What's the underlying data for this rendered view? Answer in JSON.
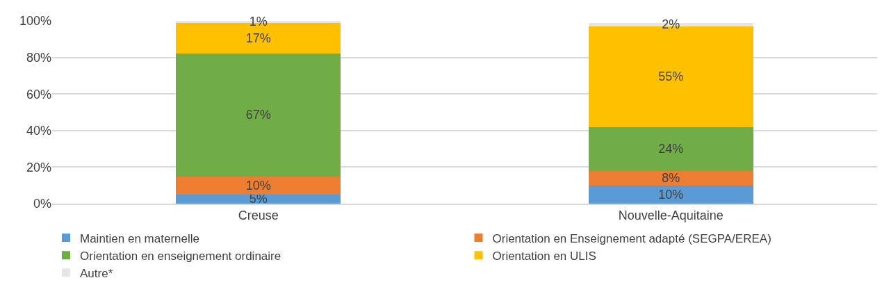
{
  "chart_data": {
    "type": "bar",
    "stacked": true,
    "categories": [
      "Creuse",
      "Nouvelle-Aquitaine"
    ],
    "series": [
      {
        "name": "Maintien en maternelle",
        "color": "#5b9bd5",
        "values": [
          5,
          10
        ],
        "value_labels": [
          "5%",
          "10%"
        ]
      },
      {
        "name": "Orientation en Enseignement adapté (SEGPA/EREA)",
        "color": "#ed7d31",
        "values": [
          10,
          8
        ],
        "value_labels": [
          "10%",
          "8%"
        ]
      },
      {
        "name": "Orientation en enseignement ordinaire",
        "color": "#70ad47",
        "values": [
          67,
          24
        ],
        "value_labels": [
          "67%",
          "24%"
        ]
      },
      {
        "name": "Orientation en ULIS",
        "color": "#ffc000",
        "values": [
          17,
          55
        ],
        "value_labels": [
          "17%",
          "55%"
        ]
      },
      {
        "name": "Autre*",
        "color": "#e7e6e6",
        "values": [
          1,
          2
        ],
        "value_labels": [
          "1%",
          "2%"
        ]
      }
    ],
    "ylim": [
      0,
      100
    ],
    "yticks": [
      {
        "value": 0,
        "label": "0%"
      },
      {
        "value": 20,
        "label": "20%"
      },
      {
        "value": 40,
        "label": "40%"
      },
      {
        "value": 60,
        "label": "60%"
      },
      {
        "value": 80,
        "label": "80%"
      },
      {
        "value": 100,
        "label": "100%"
      }
    ],
    "grid": "y",
    "legend": "bottom"
  }
}
